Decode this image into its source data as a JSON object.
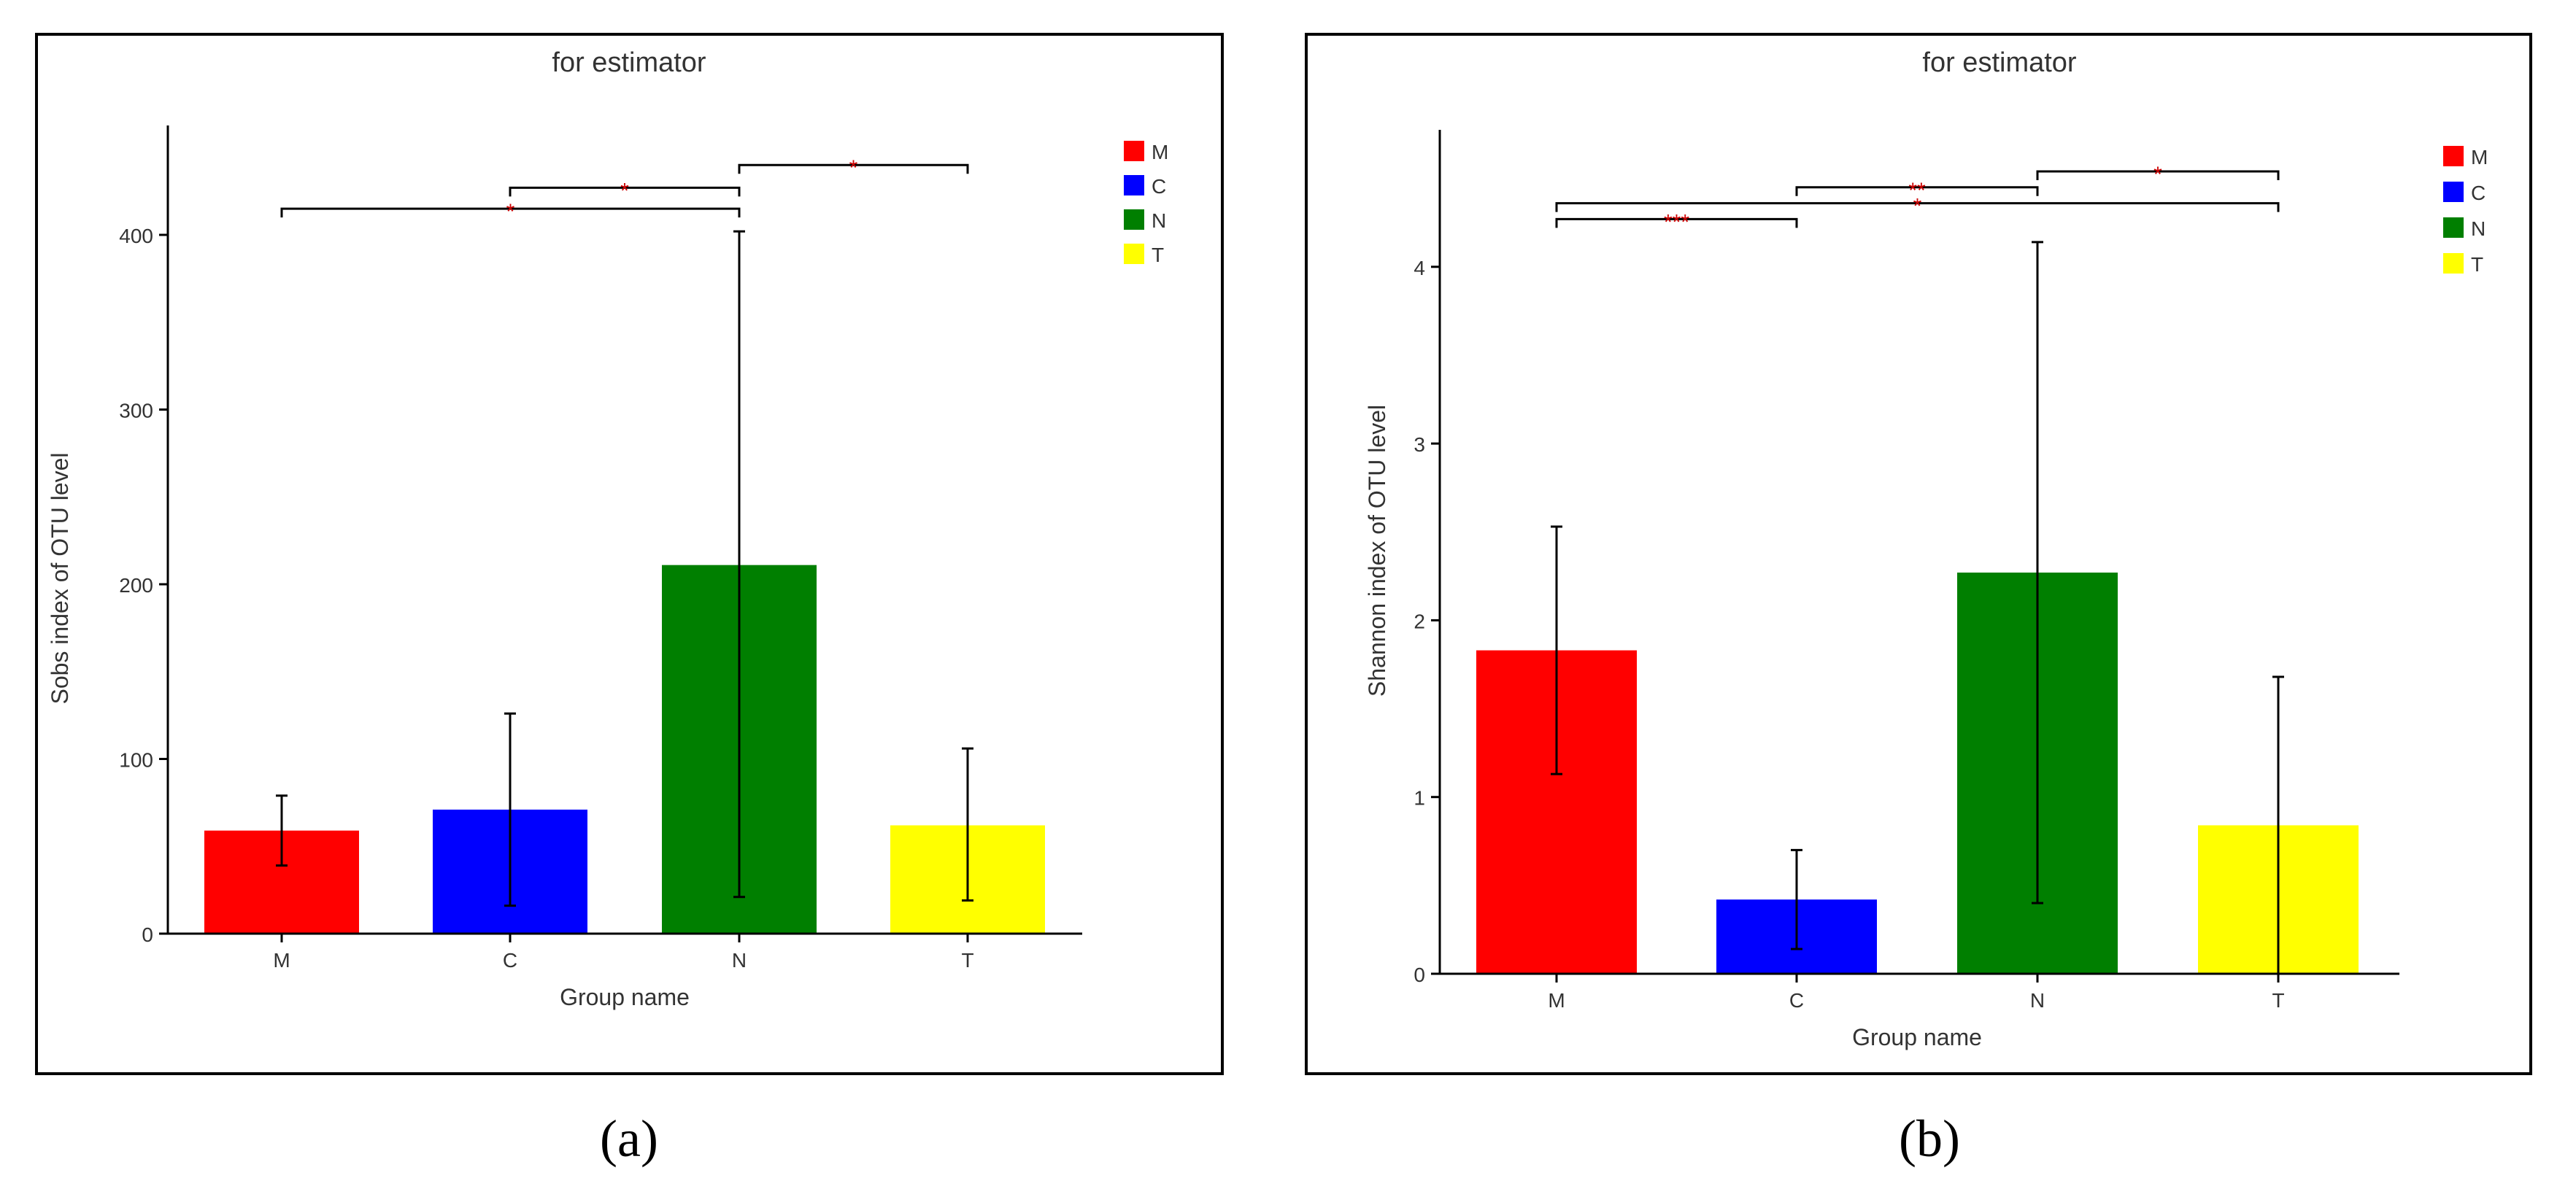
{
  "colors": {
    "M": "#ff0000",
    "C": "#0000ff",
    "N": "#007f00",
    "T": "#ffff00",
    "sig": "#cc0000",
    "axis": "#000000",
    "text": "#333333"
  },
  "chart_data": [
    {
      "id": "a",
      "type": "bar",
      "title": "for estimator",
      "xlabel": "Group name",
      "ylabel": "Sobs index of OTU level",
      "categories": [
        "M",
        "C",
        "N",
        "T"
      ],
      "values": [
        59,
        71,
        211,
        62
      ],
      "error_low": [
        39,
        16,
        21,
        19
      ],
      "error_high": [
        79,
        126,
        402,
        106
      ],
      "ylim": [
        0,
        460
      ],
      "yticks": [
        0,
        100,
        200,
        300,
        400
      ],
      "ytick_labels": [
        "0",
        "100",
        "200",
        "300",
        "400"
      ],
      "grid": false,
      "legend": {
        "position": "top-right",
        "entries": [
          "M",
          "C",
          "N",
          "T"
        ]
      },
      "significance": [
        {
          "from": "M",
          "to": "N",
          "y": 415,
          "label": "*"
        },
        {
          "from": "C",
          "to": "N",
          "y": 427,
          "label": "*"
        },
        {
          "from": "N",
          "to": "T",
          "y": 440,
          "label": "*"
        }
      ],
      "caption": "(a)"
    },
    {
      "id": "b",
      "type": "bar",
      "title": "for estimator",
      "xlabel": "Group name",
      "ylabel": "Shannon index of OTU level",
      "categories": [
        "M",
        "C",
        "N",
        "T"
      ],
      "values": [
        1.83,
        0.42,
        2.27,
        0.84
      ],
      "error_low": [
        1.13,
        0.14,
        0.4,
        0.0
      ],
      "error_high": [
        2.53,
        0.7,
        4.14,
        1.68
      ],
      "ylim": [
        0,
        4.8
      ],
      "yticks": [
        0,
        1,
        2,
        3,
        4
      ],
      "ytick_labels": [
        "0",
        "1",
        "2",
        "3",
        "4"
      ],
      "grid": false,
      "legend": {
        "position": "top-right",
        "entries": [
          "M",
          "C",
          "N",
          "T"
        ]
      },
      "significance": [
        {
          "from": "M",
          "to": "C",
          "y": 4.27,
          "label": "***"
        },
        {
          "from": "M",
          "to": "T",
          "y": 4.36,
          "label": "*"
        },
        {
          "from": "C",
          "to": "N",
          "y": 4.45,
          "label": "**"
        },
        {
          "from": "N",
          "to": "T",
          "y": 4.54,
          "label": "*"
        }
      ],
      "caption": "(b)"
    }
  ]
}
